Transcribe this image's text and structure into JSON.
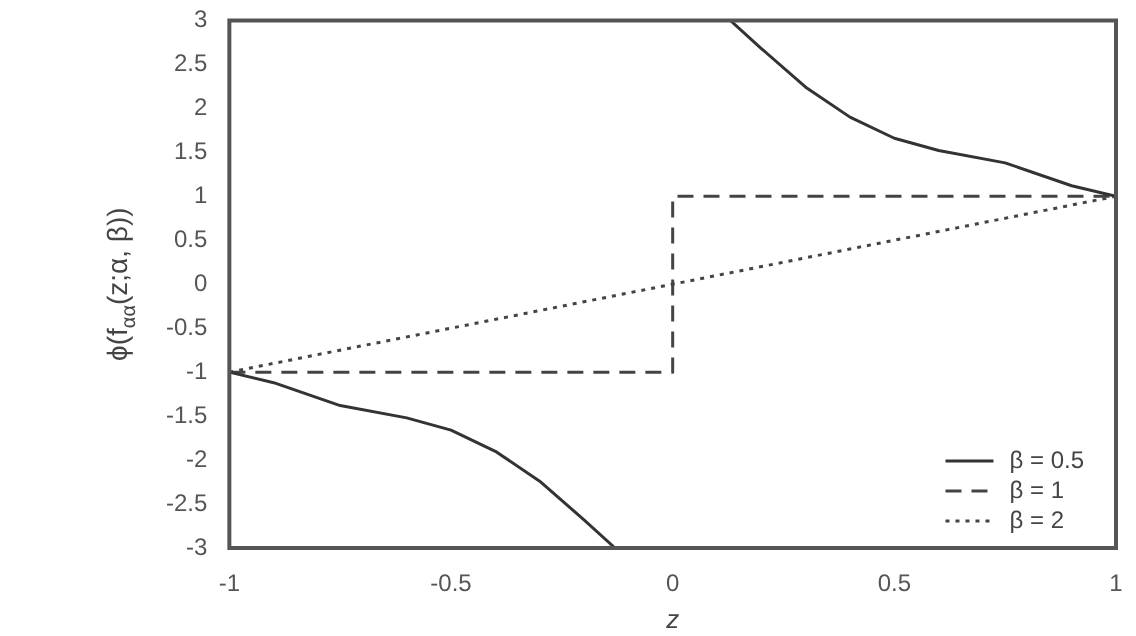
{
  "chart_data": {
    "type": "line",
    "xlabel": "z",
    "ylabel": "ϕ(f$_{αα}$(z;α, β))",
    "xlim": [
      -1,
      1
    ],
    "xticks": [
      -1,
      -0.5,
      0,
      0.5,
      1
    ],
    "ylim": [
      -3,
      3
    ],
    "yticks": [
      -3,
      -2.5,
      -2,
      -1.5,
      -1,
      -0.5,
      0,
      0.5,
      1,
      1.5,
      2,
      2.5,
      3
    ],
    "grid": false,
    "legend": "bottom right",
    "marker": "none",
    "series": [
      {
        "name": "β = 0.5",
        "color": "#333333",
        "line_style": "solid",
        "x": [
          -1,
          -0.9,
          -0.75,
          -0.6,
          -0.5,
          -0.4,
          -0.3,
          -0.2,
          -0.13,
          null,
          0.13,
          0.2,
          0.3,
          0.4,
          0.5,
          0.6,
          0.75,
          0.9,
          1
        ],
        "values": [
          -1,
          -1.12,
          -1.38,
          -1.52,
          -1.66,
          -1.9,
          -2.24,
          -2.68,
          -3,
          null,
          3,
          2.68,
          2.24,
          1.9,
          1.66,
          1.52,
          1.38,
          1.12,
          1
        ]
      },
      {
        "name": "β = 1",
        "color": "#444444",
        "line_style": "dashed",
        "x": [
          -1,
          0,
          0,
          1
        ],
        "values": [
          -1,
          -1,
          1,
          1
        ]
      },
      {
        "name": "β = 2",
        "color": "#444444",
        "line_style": "dotted",
        "x": [
          -1,
          1
        ],
        "values": [
          -1,
          1
        ]
      }
    ]
  }
}
